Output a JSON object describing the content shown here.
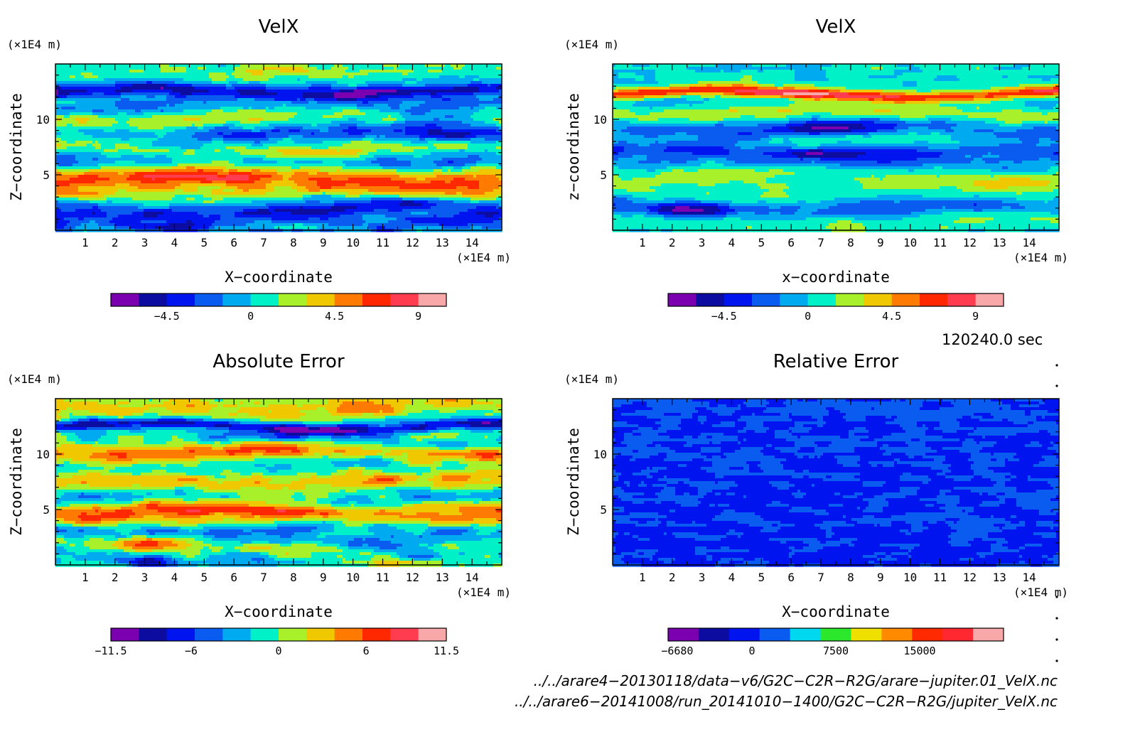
{
  "chart_data": [
    {
      "type": "heatmap",
      "title": "VelX",
      "xlabel": "X−coordinate",
      "ylabel": "Z−coordinate",
      "x_unit": "(×1E4 m)",
      "y_unit": "(×1E4 m)",
      "xlim": [
        0,
        15
      ],
      "ylim": [
        0,
        15
      ],
      "xticks": [
        "1",
        "2",
        "3",
        "4",
        "5",
        "6",
        "7",
        "8",
        "9",
        "10",
        "11",
        "12",
        "13",
        "14"
      ],
      "yticks": [
        "5",
        "10"
      ],
      "colorbar": {
        "ticks": [
          "−4.5",
          "0",
          "4.5",
          "9"
        ],
        "tick_values": [
          -4.5,
          0,
          4.5,
          9
        ],
        "range": [
          -7.5,
          10.5
        ],
        "colors": [
          "#7a00b0",
          "#0c0ca0",
          "#0014f0",
          "#0a5cf0",
          "#00aaf0",
          "#00f0c8",
          "#a8f02a",
          "#f0c800",
          "#ff7a00",
          "#ff2800",
          "#ff3c50",
          "#f8a8a8"
        ]
      },
      "field": {
        "bands": [
          {
            "z": 0.5,
            "amp": -2.5,
            "w": 0.9
          },
          {
            "z": 2.0,
            "amp": -3.0,
            "w": 1.0
          },
          {
            "z": 3.4,
            "amp": 3.0,
            "w": 1.0
          },
          {
            "z": 4.8,
            "amp": 4.5,
            "w": 1.1
          },
          {
            "z": 6.2,
            "amp": -2.0,
            "w": 1.0
          },
          {
            "z": 7.4,
            "amp": 3.0,
            "w": 0.9
          },
          {
            "z": 8.8,
            "amp": -2.5,
            "w": 1.0
          },
          {
            "z": 10.0,
            "amp": 3.5,
            "w": 0.9
          },
          {
            "z": 11.3,
            "amp": -1.5,
            "w": 0.9
          },
          {
            "z": 12.5,
            "amp": -5.0,
            "w": 0.6
          },
          {
            "z": 14.4,
            "amp": 1.0,
            "w": 1.0
          }
        ],
        "blobs": [
          {
            "x": 4.5,
            "z": 4.8,
            "amp": 4.0,
            "sx": 2.5,
            "sz": 0.6
          },
          {
            "x": 8.5,
            "z": 1.8,
            "amp": -3.5,
            "sx": 1.5,
            "sz": 0.6
          },
          {
            "x": 11.8,
            "z": 2.5,
            "amp": -3.5,
            "sx": 1.5,
            "sz": 0.5
          },
          {
            "x": 3.5,
            "z": 0.3,
            "amp": -3.5,
            "sx": 1.2,
            "sz": 0.4
          },
          {
            "x": 8.0,
            "z": 0.3,
            "amp": 5.0,
            "sx": 1.5,
            "sz": 0.4
          },
          {
            "x": 13.0,
            "z": 9.0,
            "amp": -4.0,
            "sx": 2.0,
            "sz": 1.2
          },
          {
            "x": 11.0,
            "z": 12.6,
            "amp": -2.5,
            "sx": 1.5,
            "sz": 0.4
          },
          {
            "x": 9.0,
            "z": 14.4,
            "amp": 1.5,
            "sx": 4.0,
            "sz": 0.8
          }
        ],
        "noise": 1.6
      }
    },
    {
      "type": "heatmap",
      "title": "VelX",
      "xlabel": "x−coordinate",
      "ylabel": "z−coordinate",
      "x_unit": "(×1E4 m)",
      "y_unit": "(×1E4 m)",
      "xlim": [
        0,
        15
      ],
      "ylim": [
        0,
        15
      ],
      "xticks": [
        "1",
        "2",
        "3",
        "4",
        "5",
        "6",
        "7",
        "8",
        "9",
        "10",
        "11",
        "12",
        "13",
        "14"
      ],
      "yticks": [
        "5",
        "10"
      ],
      "colorbar": {
        "ticks": [
          "−4.5",
          "0",
          "4.5",
          "9"
        ],
        "tick_values": [
          -4.5,
          0,
          4.5,
          9
        ],
        "range": [
          -7.5,
          10.5
        ],
        "colors": [
          "#7a00b0",
          "#0c0ca0",
          "#0014f0",
          "#0a5cf0",
          "#00aaf0",
          "#00f0c8",
          "#a8f02a",
          "#f0c800",
          "#ff7a00",
          "#ff2800",
          "#ff3c50",
          "#f8a8a8"
        ]
      },
      "field": {
        "bands": [
          {
            "z": 0.8,
            "amp": 1.5,
            "w": 0.8
          },
          {
            "z": 2.0,
            "amp": -2.5,
            "w": 0.8
          },
          {
            "z": 3.3,
            "amp": 0.8,
            "w": 0.9
          },
          {
            "z": 4.8,
            "amp": 2.0,
            "w": 0.9
          },
          {
            "z": 6.0,
            "amp": -1.0,
            "w": 0.9
          },
          {
            "z": 7.0,
            "amp": -2.5,
            "w": 0.8
          },
          {
            "z": 8.5,
            "amp": 0.5,
            "w": 0.9
          },
          {
            "z": 9.2,
            "amp": -2.5,
            "w": 0.8
          },
          {
            "z": 10.5,
            "amp": 2.5,
            "w": 0.8
          },
          {
            "z": 12.3,
            "amp": 7.0,
            "w": 0.5
          },
          {
            "z": 14.3,
            "amp": 0.5,
            "w": 0.8
          }
        ],
        "blobs": [
          {
            "x": 7.5,
            "z": 9.2,
            "amp": -3.5,
            "sx": 2.0,
            "sz": 0.6
          },
          {
            "x": 7.5,
            "z": 7.0,
            "amp": -3.0,
            "sx": 2.0,
            "sz": 0.5
          },
          {
            "x": 2.5,
            "z": 1.8,
            "amp": -4.5,
            "sx": 1.3,
            "sz": 0.6
          },
          {
            "x": 6.0,
            "z": 12.3,
            "amp": 2.5,
            "sx": 2.5,
            "sz": 0.3
          },
          {
            "x": 13.5,
            "z": 4.0,
            "amp": 2.0,
            "sx": 1.5,
            "sz": 0.7
          }
        ],
        "noise": 1.0
      }
    },
    {
      "type": "heatmap",
      "title": "Absolute Error",
      "xlabel": "X−coordinate",
      "ylabel": "Z−coordinate",
      "x_unit": "(×1E4 m)",
      "y_unit": "(×1E4 m)",
      "xlim": [
        0,
        15
      ],
      "ylim": [
        0,
        15
      ],
      "xticks": [
        "1",
        "2",
        "3",
        "4",
        "5",
        "6",
        "7",
        "8",
        "9",
        "10",
        "11",
        "12",
        "13",
        "14"
      ],
      "yticks": [
        "5",
        "10"
      ],
      "colorbar": {
        "ticks": [
          "−11.5",
          "−6",
          "0",
          "6",
          "11.5"
        ],
        "tick_values": [
          -11.5,
          -6,
          0,
          6,
          11.5
        ],
        "range": [
          -11.5,
          11.5
        ],
        "colors": [
          "#7a00b0",
          "#0c0ca0",
          "#0014f0",
          "#0a5cf0",
          "#00aaf0",
          "#00f0c8",
          "#a8f02a",
          "#f0c800",
          "#ff7a00",
          "#ff2800",
          "#ff3c50",
          "#f8a8a8"
        ]
      },
      "field": {
        "bands": [
          {
            "z": 0.5,
            "amp": -3.0,
            "w": 0.8
          },
          {
            "z": 1.5,
            "amp": 1.0,
            "w": 0.9
          },
          {
            "z": 3.0,
            "amp": -4.0,
            "w": 0.9
          },
          {
            "z": 4.8,
            "amp": 6.0,
            "w": 0.9
          },
          {
            "z": 6.2,
            "amp": -3.0,
            "w": 0.9
          },
          {
            "z": 7.5,
            "amp": 4.0,
            "w": 0.9
          },
          {
            "z": 9.0,
            "amp": -2.0,
            "w": 0.9
          },
          {
            "z": 10.2,
            "amp": 5.0,
            "w": 0.8
          },
          {
            "z": 11.3,
            "amp": -2.0,
            "w": 0.8
          },
          {
            "z": 12.5,
            "amp": -8.0,
            "w": 0.5
          },
          {
            "z": 14.2,
            "amp": 3.0,
            "w": 0.9
          }
        ],
        "blobs": [
          {
            "x": 3.0,
            "z": 2.0,
            "amp": 9.0,
            "sx": 1.3,
            "sz": 0.7
          },
          {
            "x": 3.0,
            "z": 0.3,
            "amp": -6.0,
            "sx": 1.0,
            "sz": 0.4
          },
          {
            "x": 10.5,
            "z": 2.0,
            "amp": -5.0,
            "sx": 1.5,
            "sz": 0.5
          },
          {
            "x": 6.5,
            "z": 4.8,
            "amp": 3.0,
            "sx": 2.0,
            "sz": 0.5
          },
          {
            "x": 11.5,
            "z": 0.2,
            "amp": 5.0,
            "sx": 1.5,
            "sz": 0.4
          },
          {
            "x": 8.5,
            "z": 11.5,
            "amp": -3.0,
            "sx": 2.0,
            "sz": 0.5
          }
        ],
        "noise": 2.2
      }
    },
    {
      "type": "heatmap",
      "title": "Relative Error",
      "xlabel": "X−coordinate",
      "ylabel": "Z−coordinate",
      "x_unit": "(×1E4 m)",
      "y_unit": "(×1E4 m)",
      "xlim": [
        0,
        15
      ],
      "ylim": [
        0,
        15
      ],
      "xticks": [
        "1",
        "2",
        "3",
        "4",
        "5",
        "6",
        "7",
        "8",
        "9",
        "10",
        "11",
        "12",
        "13",
        "14"
      ],
      "yticks": [
        "5",
        "10"
      ],
      "colorbar": {
        "ticks": [
          "−6680",
          "0",
          "7500",
          "15000"
        ],
        "tick_values": [
          -6680,
          0,
          7500,
          15000
        ],
        "range": [
          -7500,
          22500
        ],
        "colors": [
          "#7a00b0",
          "#0c0ca0",
          "#0014f0",
          "#0a5cf0",
          "#00d8f0",
          "#2ce82c",
          "#f0e000",
          "#ff8a00",
          "#ff2a00",
          "#ff2830",
          "#f8a8a8"
        ]
      },
      "field": {
        "bands": [],
        "blobs": [],
        "base": -1500,
        "noise": 1800,
        "binary": true
      }
    }
  ],
  "time_label": "120240.0 sec",
  "file_paths": [
    "../../arare4−20130118/data−v6/G2C−C2R−R2G/arare−jupiter.01_VelX.nc",
    "../../arare6−20141008/run_20141010−1400/G2C−C2R−R2G/jupiter_VelX.nc"
  ]
}
